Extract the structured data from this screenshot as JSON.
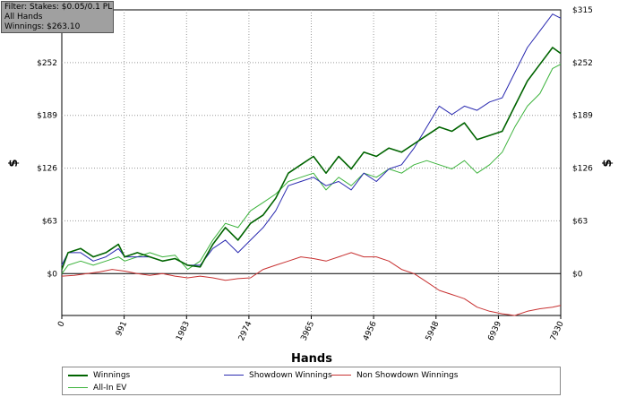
{
  "filter_panel": {
    "line1": "Filter: Stakes: $0.05/0.1 PL",
    "line2": "All Hands",
    "line3": "Winnings: $263.10"
  },
  "chart_data": {
    "type": "line",
    "xlabel": "Hands",
    "ylabel": "$",
    "xlim": [
      0,
      7930
    ],
    "ylim": [
      -50,
      315
    ],
    "x_ticks": [
      0,
      991,
      1983,
      2974,
      3965,
      4956,
      5948,
      6939,
      7930
    ],
    "y_ticks": [
      0,
      63,
      126,
      189,
      252,
      315
    ],
    "y_tick_labels": [
      "$0",
      "$63",
      "$126",
      "$189",
      "$252",
      "$315"
    ],
    "grid": true,
    "legend_position": "bottom",
    "series": [
      {
        "name": "Winnings",
        "color": "#006400",
        "x": [
          0,
          100,
          300,
          500,
          700,
          900,
          1000,
          1200,
          1400,
          1600,
          1800,
          2000,
          2200,
          2400,
          2600,
          2800,
          3000,
          3200,
          3400,
          3600,
          3800,
          4000,
          4200,
          4400,
          4600,
          4800,
          5000,
          5200,
          5400,
          5600,
          5800,
          6000,
          6200,
          6400,
          6600,
          6800,
          7000,
          7200,
          7400,
          7600,
          7800,
          7930
        ],
        "values": [
          5,
          25,
          30,
          20,
          25,
          35,
          20,
          25,
          20,
          15,
          18,
          10,
          8,
          35,
          55,
          40,
          60,
          70,
          90,
          120,
          130,
          140,
          120,
          140,
          125,
          145,
          140,
          150,
          145,
          155,
          165,
          175,
          170,
          180,
          160,
          165,
          170,
          200,
          230,
          250,
          270,
          263
        ]
      },
      {
        "name": "Showdown Winnings",
        "color": "#2a2ab0",
        "x": [
          0,
          100,
          300,
          500,
          700,
          900,
          1000,
          1200,
          1400,
          1600,
          1800,
          2000,
          2200,
          2400,
          2600,
          2800,
          3000,
          3200,
          3400,
          3600,
          3800,
          4000,
          4200,
          4400,
          4600,
          4800,
          5000,
          5200,
          5400,
          5600,
          5800,
          6000,
          6200,
          6400,
          6600,
          6800,
          7000,
          7200,
          7400,
          7600,
          7800,
          7930
        ],
        "values": [
          10,
          25,
          25,
          15,
          20,
          30,
          20,
          20,
          20,
          15,
          18,
          10,
          10,
          30,
          40,
          25,
          40,
          55,
          75,
          105,
          110,
          115,
          105,
          110,
          100,
          120,
          110,
          125,
          130,
          150,
          175,
          200,
          190,
          200,
          195,
          205,
          210,
          240,
          270,
          290,
          310,
          305
        ]
      },
      {
        "name": "Non Showdown Winnings",
        "color": "#c83232",
        "x": [
          0,
          200,
          400,
          600,
          800,
          1000,
          1200,
          1400,
          1600,
          1800,
          2000,
          2200,
          2400,
          2600,
          2800,
          3000,
          3200,
          3400,
          3600,
          3800,
          4000,
          4200,
          4400,
          4600,
          4800,
          5000,
          5200,
          5400,
          5600,
          5800,
          6000,
          6200,
          6400,
          6600,
          6800,
          7000,
          7200,
          7400,
          7600,
          7800,
          7930
        ],
        "values": [
          -3,
          -2,
          0,
          2,
          5,
          3,
          0,
          -2,
          0,
          -3,
          -5,
          -3,
          -5,
          -8,
          -6,
          -5,
          5,
          10,
          15,
          20,
          18,
          15,
          20,
          25,
          20,
          20,
          15,
          5,
          0,
          -10,
          -20,
          -25,
          -30,
          -40,
          -45,
          -48,
          -50,
          -45,
          -42,
          -40,
          -38
        ]
      },
      {
        "name": "All-In EV",
        "color": "#3cb33c",
        "x": [
          0,
          100,
          300,
          500,
          700,
          900,
          1000,
          1200,
          1400,
          1600,
          1800,
          2000,
          2200,
          2400,
          2600,
          2800,
          3000,
          3200,
          3400,
          3600,
          3800,
          4000,
          4200,
          4400,
          4600,
          4800,
          5000,
          5200,
          5400,
          5600,
          5800,
          6000,
          6200,
          6400,
          6600,
          6800,
          7000,
          7200,
          7400,
          7600,
          7800,
          7930
        ],
        "values": [
          0,
          10,
          15,
          10,
          15,
          20,
          15,
          20,
          25,
          20,
          22,
          5,
          15,
          40,
          60,
          55,
          75,
          85,
          95,
          110,
          115,
          120,
          100,
          115,
          105,
          120,
          115,
          125,
          120,
          130,
          135,
          130,
          125,
          135,
          120,
          130,
          145,
          175,
          200,
          215,
          245,
          250
        ]
      }
    ]
  }
}
